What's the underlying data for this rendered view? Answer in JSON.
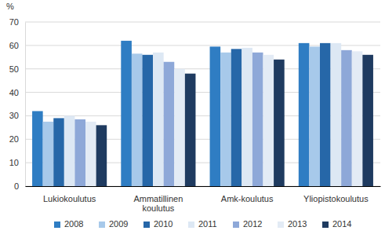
{
  "chart_data": {
    "type": "bar",
    "ylabel": "%",
    "categories": [
      "Lukiokoulutus",
      "Ammatillinen koulutus",
      "Amk-koulutus",
      "Yliopistokoulutus"
    ],
    "series": [
      {
        "name": "2008",
        "color": "#2f7dc3",
        "values": [
          32,
          62,
          59.5,
          61
        ]
      },
      {
        "name": "2009",
        "color": "#a7c9ea",
        "values": [
          27.5,
          56.5,
          57,
          59.5
        ]
      },
      {
        "name": "2010",
        "color": "#2667a8",
        "values": [
          29,
          56,
          58.5,
          61
        ]
      },
      {
        "name": "2011",
        "color": "#dde8f4",
        "values": [
          30,
          57,
          59,
          61
        ]
      },
      {
        "name": "2012",
        "color": "#8ea8d8",
        "values": [
          28.5,
          53,
          57,
          58
        ]
      },
      {
        "name": "2013",
        "color": "#e3ebf5",
        "values": [
          27.5,
          50,
          56,
          57.5
        ]
      },
      {
        "name": "2014",
        "color": "#1f3b60",
        "values": [
          26,
          48,
          54,
          56
        ]
      }
    ],
    "ylim": [
      0,
      70
    ],
    "yticks": [
      0,
      10,
      20,
      30,
      40,
      50,
      60,
      70
    ],
    "grid": true,
    "legend": "bottom"
  }
}
